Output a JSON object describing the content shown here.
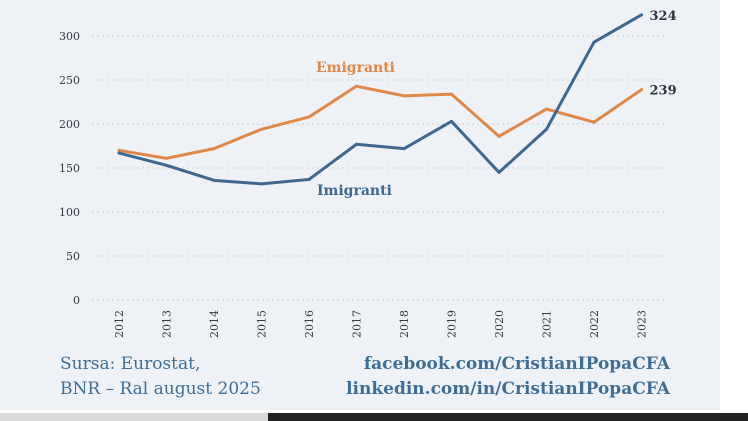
{
  "chart_data": {
    "type": "line",
    "x": [
      "2012",
      "2013",
      "2014",
      "2015",
      "2016",
      "2017",
      "2018",
      "2019",
      "2020",
      "2021",
      "2022",
      "2023"
    ],
    "series": [
      {
        "name": "Emigranti",
        "color": "#e0874a",
        "values": [
          170,
          161,
          172,
          194,
          208,
          243,
          232,
          234,
          186,
          217,
          202,
          239
        ]
      },
      {
        "name": "Imigranti",
        "color": "#3f6890",
        "values": [
          167,
          153,
          136,
          132,
          137,
          177,
          172,
          203,
          145,
          194,
          293,
          324
        ]
      }
    ],
    "yticks": [
      0,
      50,
      100,
      150,
      200,
      250,
      300
    ],
    "ylim": [
      0,
      330
    ],
    "end_labels": [
      "324",
      "239"
    ],
    "title": "",
    "xlabel": "",
    "ylabel": ""
  },
  "footer": {
    "source_line1": "Sursa: Eurostat,",
    "source_line2": "BNR – Ral august 2025",
    "link1": "facebook.com/CristianIPopaCFA",
    "link2": "linkedin.com/in/CristianIPopaCFA"
  }
}
